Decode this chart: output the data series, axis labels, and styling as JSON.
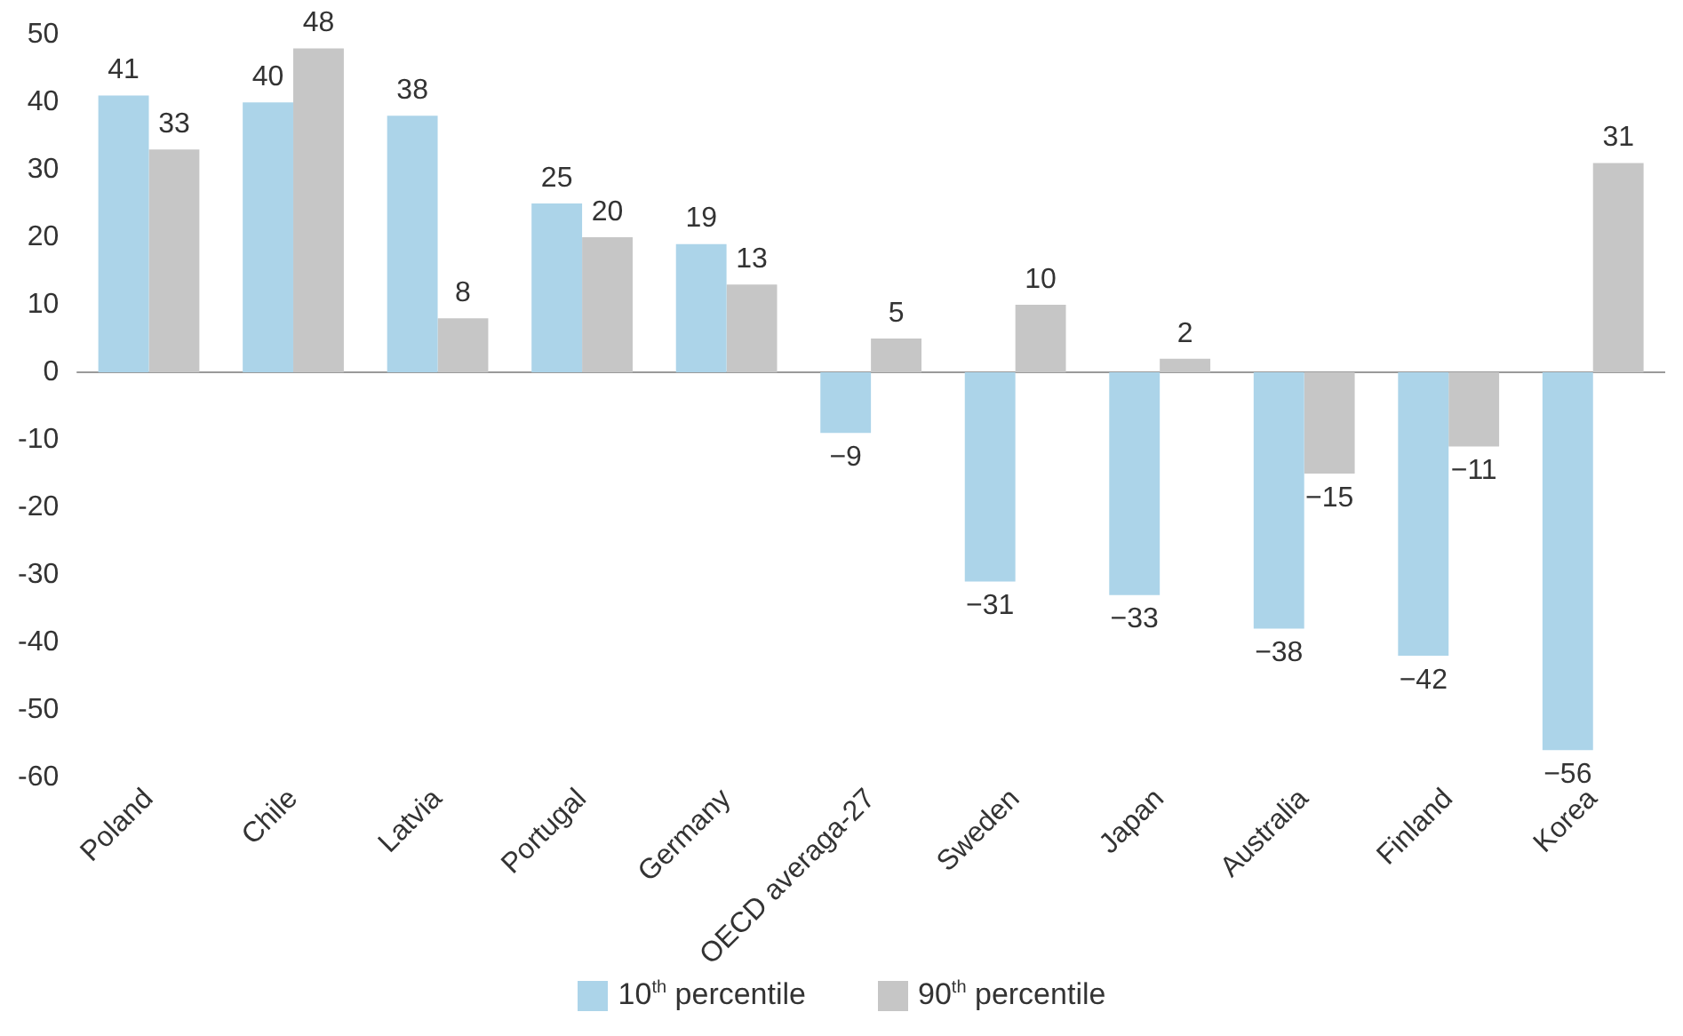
{
  "chart_data": {
    "type": "bar",
    "categories": [
      "Poland",
      "Chile",
      "Latvia",
      "Portugal",
      "Germany",
      "OECD averaga-27",
      "Sweden",
      "Japan",
      "Australia",
      "Finland",
      "Korea"
    ],
    "series": [
      {
        "name": "10$^{th}$ percentile",
        "color": "#acd4e9",
        "values": [
          41,
          40,
          38,
          25,
          19,
          -9,
          -31,
          -33,
          -38,
          -42,
          -56
        ],
        "value_labels": [
          "41",
          "40",
          "38",
          "25",
          "19",
          "−9",
          "−31",
          "−33",
          "−38",
          "−42",
          "−56"
        ]
      },
      {
        "name": "90$^{th}$ percentile",
        "color": "#c6c6c6",
        "values": [
          33,
          48,
          8,
          20,
          13,
          5,
          10,
          2,
          -15,
          -11,
          31
        ],
        "value_labels": [
          "33",
          "48",
          "8",
          "20",
          "13",
          "5",
          "10",
          "2",
          "−15",
          "−11",
          "31"
        ]
      }
    ],
    "ylim": [
      -60,
      50
    ],
    "yticks": [
      -60,
      -50,
      -40,
      -30,
      -20,
      -10,
      0,
      10,
      20,
      30,
      40,
      50
    ],
    "ref_lines": [
      {
        "axis": "y",
        "value": 0,
        "color": "#9a9a9a"
      }
    ],
    "grid": false,
    "legend": "bottom"
  }
}
